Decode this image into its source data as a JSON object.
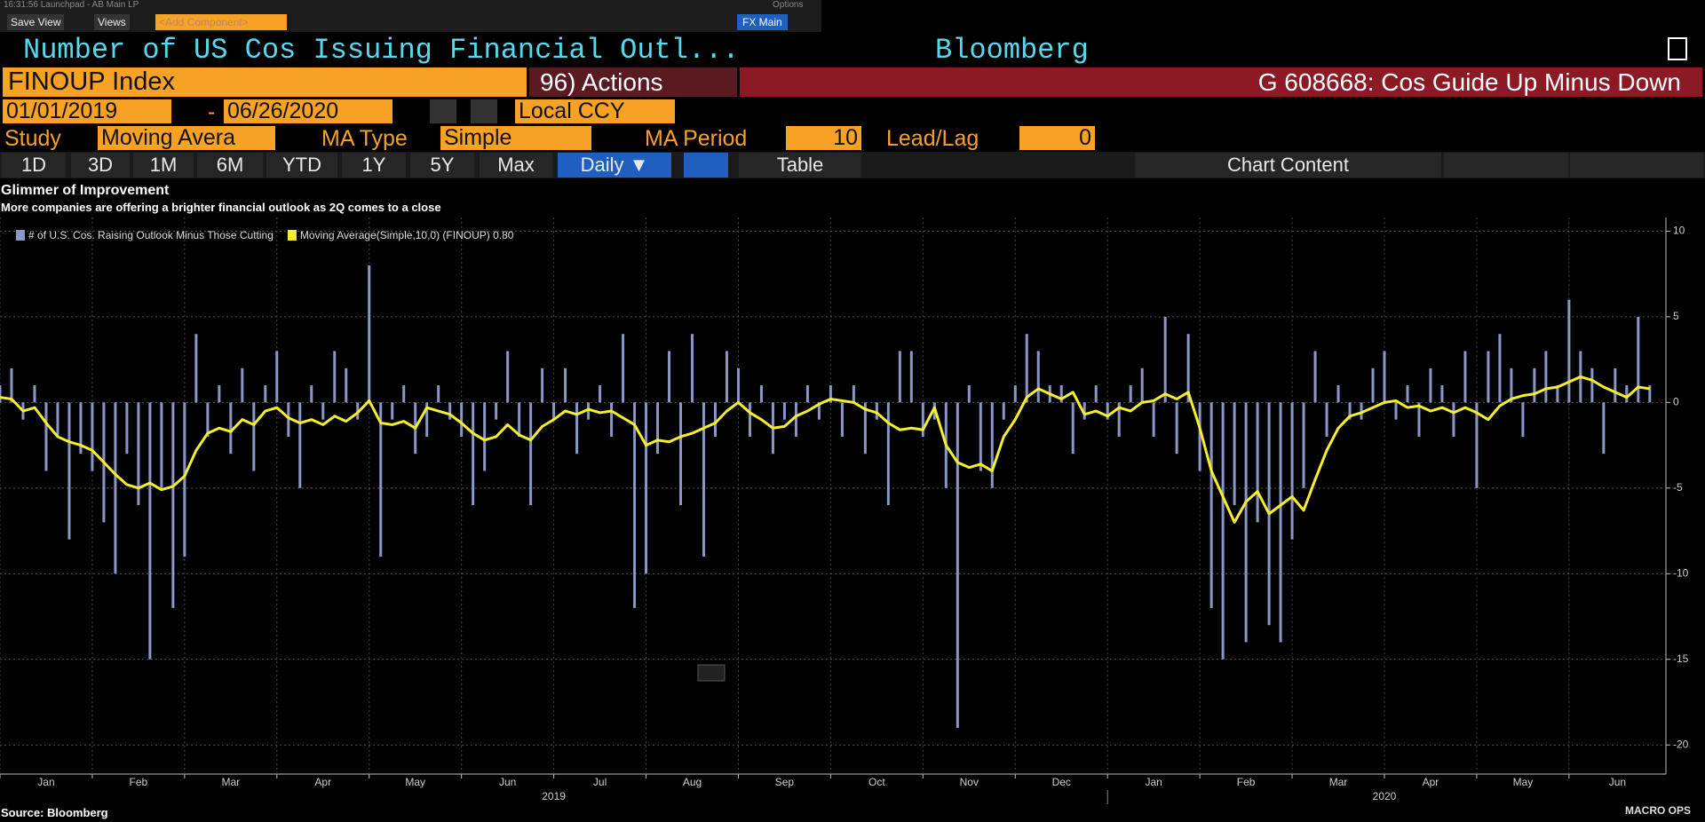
{
  "toolbar": {
    "clock": "16:31:56 Launchpad - AB Main LP",
    "options": "Options",
    "save_view": "Save View",
    "views": "Views",
    "add_component": "<Add Component>",
    "fx_main": "FX Main"
  },
  "header": {
    "title": "Number of US Cos Issuing Financial Outl...",
    "brand": "Bloomberg",
    "ticker": "FINOUP Index",
    "actions": "96) Actions",
    "description": "G 608668: Cos Guide Up Minus Down"
  },
  "controls": {
    "start_date": "01/01/2019",
    "date_sep": "-",
    "end_date": "06/26/2020",
    "currency": "Local CCY",
    "study_label": "Study",
    "study": "Moving Avera",
    "ma_type_label": "MA Type",
    "ma_type": "Simple",
    "ma_period_label": "MA Period",
    "ma_period": "10",
    "lead_lag_label": "Lead/Lag",
    "lead_lag": "0",
    "ranges": [
      "1D",
      "3D",
      "1M",
      "6M",
      "YTD",
      "1Y",
      "5Y",
      "Max"
    ],
    "frequency": "Daily ▼",
    "table": "Table",
    "chart_content": "Chart Content"
  },
  "chart_data": {
    "type": "bar-line",
    "title": "Glimmer of Improvement",
    "subtitle": "More companies are offering a brighter financial outlook as 2Q comes to a close",
    "x": [
      0,
      0.125,
      0.25,
      0.375,
      0.5,
      0.625,
      0.75,
      0.875,
      1,
      1.125,
      1.25,
      1.375,
      1.5,
      1.625,
      1.75,
      1.875,
      2,
      2.125,
      2.25,
      2.375,
      2.5,
      2.625,
      2.75,
      2.875,
      3,
      3.125,
      3.25,
      3.375,
      3.5,
      3.625,
      3.75,
      3.875,
      4,
      4.125,
      4.25,
      4.375,
      4.5,
      4.625,
      4.75,
      4.875,
      5,
      5.125,
      5.25,
      5.375,
      5.5,
      5.625,
      5.75,
      5.875,
      6,
      6.125,
      6.25,
      6.375,
      6.5,
      6.625,
      6.75,
      6.875,
      7,
      7.125,
      7.25,
      7.375,
      7.5,
      7.625,
      7.75,
      7.875,
      8,
      8.125,
      8.25,
      8.375,
      8.5,
      8.625,
      8.75,
      8.875,
      9,
      9.125,
      9.25,
      9.375,
      9.5,
      9.625,
      9.75,
      9.875,
      10,
      10.125,
      10.25,
      10.375,
      10.5,
      10.625,
      10.75,
      10.875,
      11,
      11.125,
      11.25,
      11.375,
      11.5,
      11.625,
      11.75,
      11.875,
      12,
      12.125,
      12.25,
      12.375,
      12.5,
      12.625,
      12.75,
      12.875,
      13,
      13.125,
      13.25,
      13.375,
      13.5,
      13.625,
      13.75,
      13.875,
      14,
      14.125,
      14.25,
      14.375,
      14.5,
      14.625,
      14.75,
      14.875,
      15,
      15.125,
      15.25,
      15.375,
      15.5,
      15.625,
      15.75,
      15.875,
      16,
      16.125,
      16.25,
      16.375,
      16.5,
      16.625,
      16.75,
      16.875,
      17,
      17.125,
      17.25,
      17.375,
      17.5,
      17.625,
      17.75,
      17.875
    ],
    "series": [
      {
        "name": "# of U.S. Cos. Raising Outlook Minus Those Cutting",
        "color": "#8a96c6",
        "kind": "bar",
        "values": [
          1,
          2,
          -1,
          1,
          -4,
          -2,
          -8,
          -3,
          -4,
          -7,
          -10,
          -3,
          -6,
          -15,
          -5,
          -12,
          -9,
          4,
          -2,
          1,
          -3,
          2,
          -4,
          1,
          3,
          -2,
          -5,
          1,
          -1,
          3,
          2,
          -1,
          8,
          -9,
          -1,
          1,
          -3,
          -2,
          1,
          -1,
          -2,
          -6,
          -4,
          -1,
          3,
          -2,
          -6,
          2,
          -1,
          2,
          -3,
          -1,
          1,
          -2,
          4,
          -12,
          -10,
          -3,
          3,
          -6,
          4,
          -9,
          -2,
          3,
          2,
          -2,
          1,
          -3,
          -1,
          -2,
          1,
          -1,
          1,
          -2,
          1,
          -3,
          -1,
          -6,
          3,
          3,
          -2,
          -1,
          -5,
          -19,
          1,
          -4,
          -5,
          -1,
          1,
          4,
          3,
          1,
          1,
          -3,
          -1,
          1,
          -1,
          -2,
          1,
          2,
          -2,
          5,
          -3,
          4,
          -4,
          -12,
          -15,
          -6,
          -14,
          -7,
          -13,
          -14,
          -8,
          -5,
          3,
          -2,
          1,
          -1,
          -1,
          2,
          3,
          -1,
          1,
          -2,
          2,
          1,
          -2,
          3,
          -5,
          3,
          4,
          2,
          -2,
          2,
          3,
          1,
          6,
          3,
          2,
          -3,
          2,
          1,
          5,
          1
        ]
      },
      {
        "name": "Moving Average(Simple,10,0) (FINOUP) 0.80",
        "color": "#f5f02a",
        "kind": "line",
        "values": [
          0.3,
          0.2,
          -0.5,
          -0.3,
          -1.2,
          -2.0,
          -2.3,
          -2.5,
          -2.8,
          -3.5,
          -4.2,
          -4.8,
          -5.0,
          -4.7,
          -5.1,
          -4.9,
          -4.3,
          -2.8,
          -1.8,
          -1.5,
          -1.7,
          -1.0,
          -1.3,
          -0.5,
          -0.3,
          -0.9,
          -1.2,
          -1.0,
          -1.3,
          -0.8,
          -1.1,
          -0.6,
          0.1,
          -1.2,
          -1.3,
          -1.1,
          -1.5,
          -0.3,
          -0.5,
          -0.7,
          -1.2,
          -1.8,
          -2.2,
          -2.0,
          -1.3,
          -1.9,
          -2.2,
          -1.4,
          -1.0,
          -0.5,
          -0.7,
          -0.4,
          -0.6,
          -0.5,
          -0.9,
          -1.3,
          -2.5,
          -2.2,
          -2.3,
          -2.0,
          -1.8,
          -1.5,
          -1.2,
          -0.5,
          0.0,
          -0.6,
          -1.0,
          -1.5,
          -1.4,
          -0.8,
          -0.5,
          -0.1,
          0.2,
          0.1,
          0.0,
          -0.4,
          -0.6,
          -1.2,
          -1.6,
          -1.5,
          -1.6,
          -0.3,
          -2.5,
          -3.5,
          -3.8,
          -3.6,
          -4.0,
          -2.0,
          -1.0,
          0.3,
          0.8,
          0.5,
          0.2,
          0.6,
          -0.7,
          -0.5,
          -0.8,
          -0.3,
          -0.5,
          0.0,
          0.1,
          0.5,
          0.2,
          0.6,
          -1.5,
          -4.0,
          -5.5,
          -7.0,
          -5.8,
          -5.2,
          -6.5,
          -6.0,
          -5.5,
          -6.3,
          -4.5,
          -2.8,
          -1.5,
          -0.8,
          -0.6,
          -0.3,
          0.0,
          0.1,
          -0.3,
          -0.2,
          -0.5,
          -0.3,
          -0.6,
          -0.3,
          -0.6,
          -1.0,
          -0.2,
          0.2,
          0.4,
          0.5,
          0.8,
          0.9,
          1.2,
          1.5,
          1.3,
          0.9,
          0.6,
          0.3,
          0.9,
          0.8
        ]
      }
    ],
    "xlim": [
      0,
      18.05
    ],
    "xticks": [
      {
        "value": 0,
        "label": "Jan"
      },
      {
        "value": 1,
        "label": "Feb"
      },
      {
        "value": 2,
        "label": "Mar"
      },
      {
        "value": 3,
        "label": "Apr"
      },
      {
        "value": 4,
        "label": "May"
      },
      {
        "value": 5,
        "label": "Jun"
      },
      {
        "value": 6,
        "label": "Jul"
      },
      {
        "value": 7,
        "label": "Aug"
      },
      {
        "value": 8,
        "label": "Sep"
      },
      {
        "value": 9,
        "label": "Oct"
      },
      {
        "value": 10,
        "label": "Nov"
      },
      {
        "value": 11,
        "label": "Dec"
      },
      {
        "value": 12,
        "label": "Jan"
      },
      {
        "value": 13,
        "label": "Feb"
      },
      {
        "value": 14,
        "label": "Mar"
      },
      {
        "value": 15,
        "label": "Apr"
      },
      {
        "value": 16,
        "label": "May"
      },
      {
        "value": 17,
        "label": "Jun"
      }
    ],
    "years": [
      {
        "value": 6,
        "label": "2019"
      },
      {
        "value": 15,
        "label": "2020"
      }
    ],
    "ylim": [
      -21.7,
      10.8
    ],
    "yticks": [
      10,
      5,
      0,
      -5,
      -10,
      -15,
      -20
    ],
    "grid": true,
    "legend": "top-left"
  },
  "footer": {
    "source": "Source: Bloomberg",
    "logo": "MACRO OPS"
  }
}
